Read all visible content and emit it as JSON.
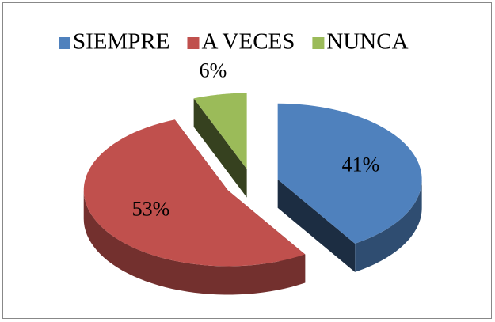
{
  "chart_data": {
    "type": "pie",
    "categories": [
      "SIEMPRE",
      "A VECES",
      "NUNCA"
    ],
    "values": [
      41,
      53,
      6
    ],
    "value_labels": [
      "41%",
      "53%",
      "6%"
    ],
    "colors": [
      "#4f81bd",
      "#c0504d",
      "#9bbb59"
    ],
    "legend": "top"
  }
}
